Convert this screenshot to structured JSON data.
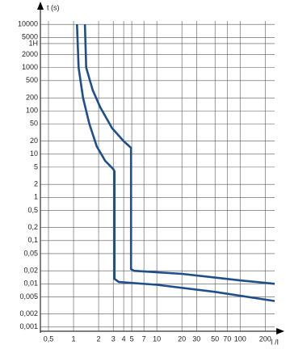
{
  "chart_data": {
    "type": "line",
    "y_label": "t (s)",
    "x_label": "I /I",
    "log_x": true,
    "log_y": true,
    "grid": true,
    "xlim": [
      0.4,
      260
    ],
    "ylim": [
      0.0008,
      12000
    ],
    "xticks": [
      {
        "value": 0.5,
        "label": "0,5"
      },
      1,
      2,
      3,
      4,
      5,
      7,
      10,
      20,
      30,
      50,
      70,
      100,
      200
    ],
    "yticks": [
      10000,
      5000,
      {
        "value": 3600,
        "label": "1H"
      },
      2000,
      1000,
      500,
      200,
      100,
      50,
      20,
      10,
      5,
      2,
      1,
      {
        "value": 0.5,
        "label": "0,5"
      },
      {
        "value": 0.2,
        "label": "0,2"
      },
      {
        "value": 0.1,
        "label": "0,1"
      },
      {
        "value": 0.05,
        "label": "0,05"
      },
      {
        "value": 0.02,
        "label": "0,02"
      },
      {
        "value": 0.01,
        "label": "0,01"
      },
      {
        "value": 0.005,
        "label": "0,005"
      },
      {
        "value": 0.002,
        "label": "0,002"
      },
      {
        "value": 0.001,
        "label": "0,001"
      }
    ],
    "series": [
      {
        "color": "#1f4e8c",
        "x": [
          1.1,
          1.15,
          1.3,
          1.55,
          1.9,
          2.4,
          3.0,
          3.1,
          3.1,
          3.5,
          10,
          50,
          260
        ],
        "values": [
          10000,
          1000,
          200,
          50,
          15,
          7,
          4.5,
          4,
          0.013,
          0.011,
          0.0095,
          0.0065,
          0.004
        ]
      },
      {
        "color": "#1f4e8c",
        "x": [
          1.37,
          1.42,
          1.7,
          2.1,
          2.9,
          4.0,
          4.9,
          4.9,
          5.3,
          20,
          100,
          260
        ],
        "values": [
          10000,
          1000,
          300,
          120,
          40,
          20,
          14,
          0.022,
          0.02,
          0.017,
          0.012,
          0.01
        ]
      }
    ]
  }
}
